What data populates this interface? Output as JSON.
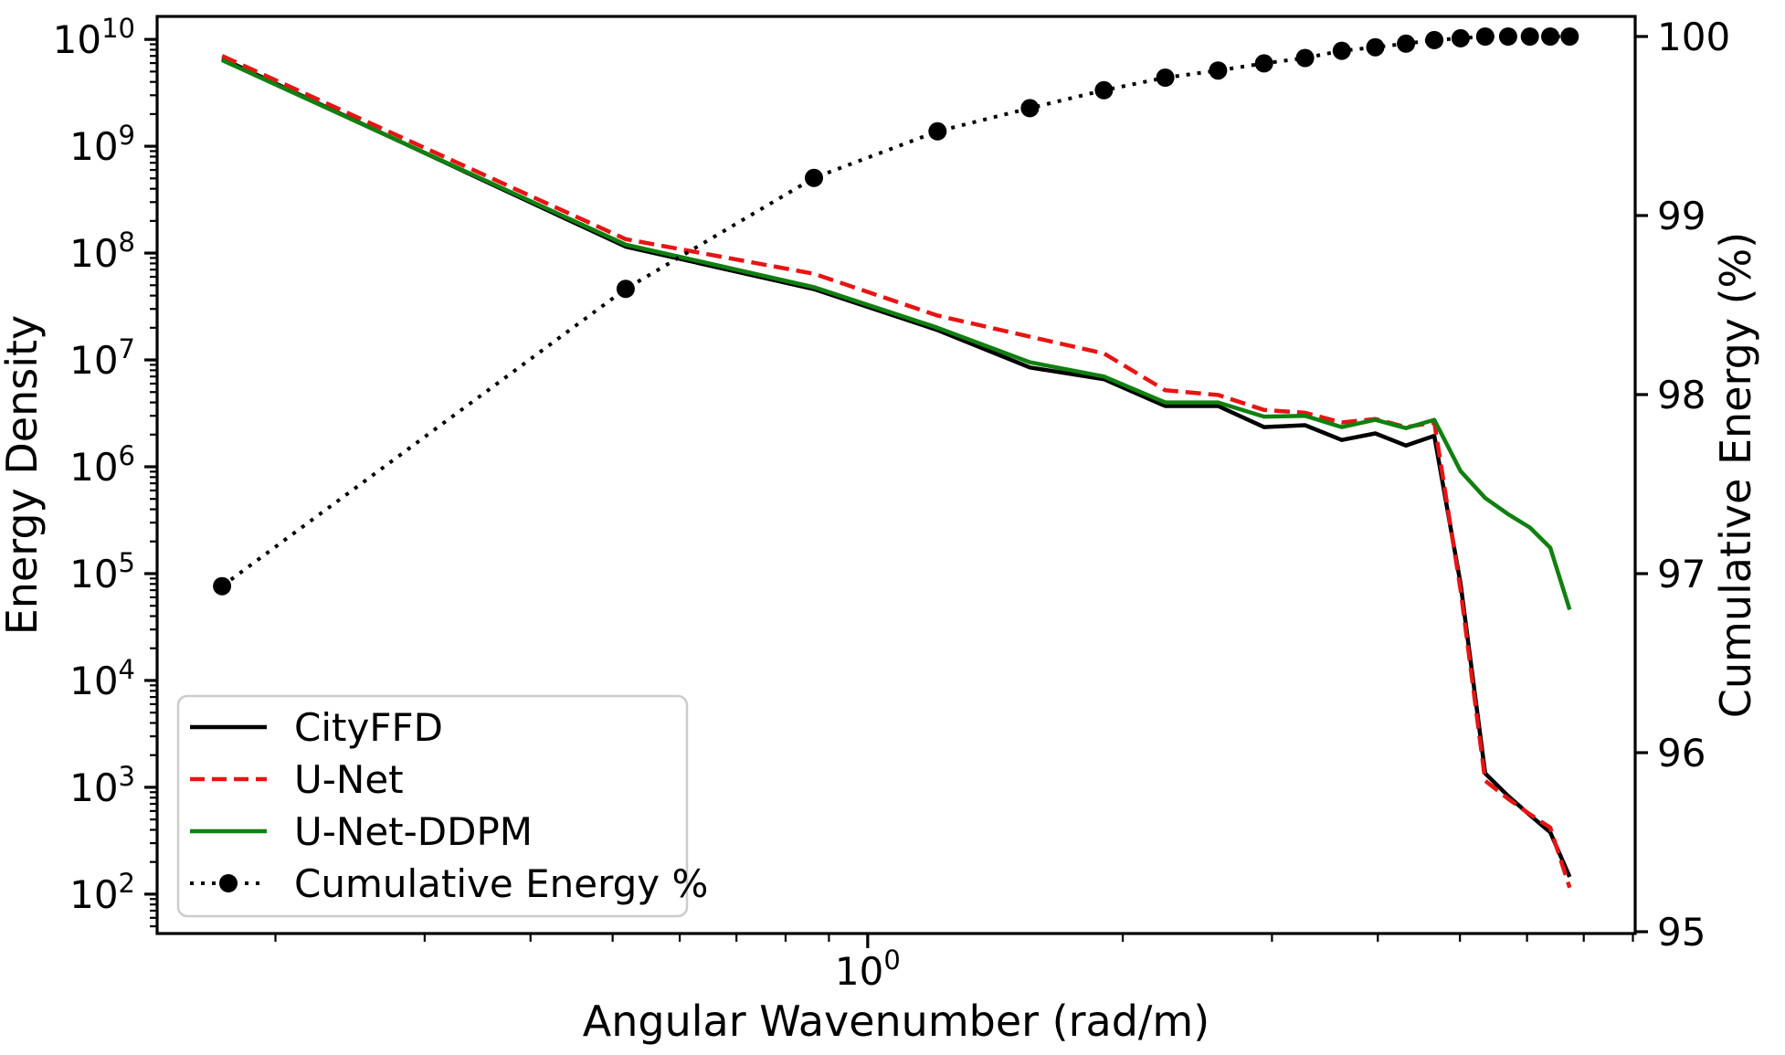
{
  "figure": {
    "background": "#ffffff",
    "text_color": "#000000"
  },
  "chart_data": {
    "type": "line",
    "title": "",
    "x_label": "Angular Wavenumber (rad/m)",
    "y_left_label": "Energy Density",
    "y_right_label": "Cumulative Energy (%)",
    "x_scale": "log",
    "y_left_scale": "log",
    "y_right_scale": "linear",
    "xlim": [
      0.145,
      8.05
    ],
    "ylim_left": [
      42.8,
      16400000000.0
    ],
    "ylim_right": [
      94.99,
      100.112
    ],
    "grid": false,
    "legend_position": "lower-left",
    "x_major_ticks": [
      1
    ],
    "x_major_tick_labels": [
      {
        "base": "10",
        "exp": "0"
      }
    ],
    "y_left_tick_exponents": [
      2,
      3,
      4,
      5,
      6,
      7,
      8,
      9,
      10
    ],
    "y_right_ticks": [
      95,
      96,
      97,
      98,
      99,
      100
    ],
    "x": [
      0.173,
      0.518,
      0.864,
      1.209,
      1.554,
      1.9,
      2.245,
      2.591,
      2.936,
      3.282,
      3.627,
      3.973,
      4.318,
      4.664,
      5.009,
      5.355,
      5.7,
      6.046,
      6.391,
      6.737
    ],
    "series": [
      {
        "name": "CityFFD",
        "axis": "left",
        "color": "#000000",
        "style": "solid",
        "marker": "none",
        "values": [
          6600000000.0,
          115000000.0,
          46000000.0,
          19000000.0,
          8500000.0,
          6600000.0,
          3700000.0,
          3700000.0,
          2350000.0,
          2450000.0,
          1780000.0,
          2050000.0,
          1580000.0,
          1950000.0,
          80000.0,
          1350,
          830,
          550,
          380,
          145
        ]
      },
      {
        "name": "U-Net",
        "axis": "left",
        "color": "#e81414",
        "style": "dashed",
        "marker": "none",
        "values": [
          7000000000.0,
          135000000.0,
          64000000.0,
          26000000.0,
          16500000.0,
          11500000.0,
          5200000.0,
          4700000.0,
          3400000.0,
          3200000.0,
          2600000.0,
          2800000.0,
          2350000.0,
          2600000.0,
          70000.0,
          1150,
          780,
          560,
          420,
          115
        ]
      },
      {
        "name": "U-Net-DDPM",
        "axis": "left",
        "color": "#108010",
        "style": "solid",
        "marker": "none",
        "values": [
          6400000000.0,
          120000000.0,
          48000000.0,
          20000000.0,
          9500000.0,
          7000000.0,
          4000000.0,
          4000000.0,
          2950000.0,
          3000000.0,
          2350000.0,
          2750000.0,
          2300000.0,
          2750000.0,
          910000.0,
          510000.0,
          360000.0,
          270000.0,
          175000.0,
          46000.0
        ]
      },
      {
        "name": "Cumulative Energy %",
        "axis": "right",
        "color": "#000000",
        "style": "dotted",
        "marker": "circle",
        "values": [
          96.93,
          98.59,
          99.21,
          99.47,
          99.6,
          99.7,
          99.77,
          99.81,
          99.85,
          99.88,
          99.92,
          99.94,
          99.96,
          99.98,
          99.99,
          100,
          100,
          100,
          100,
          100
        ]
      }
    ]
  }
}
